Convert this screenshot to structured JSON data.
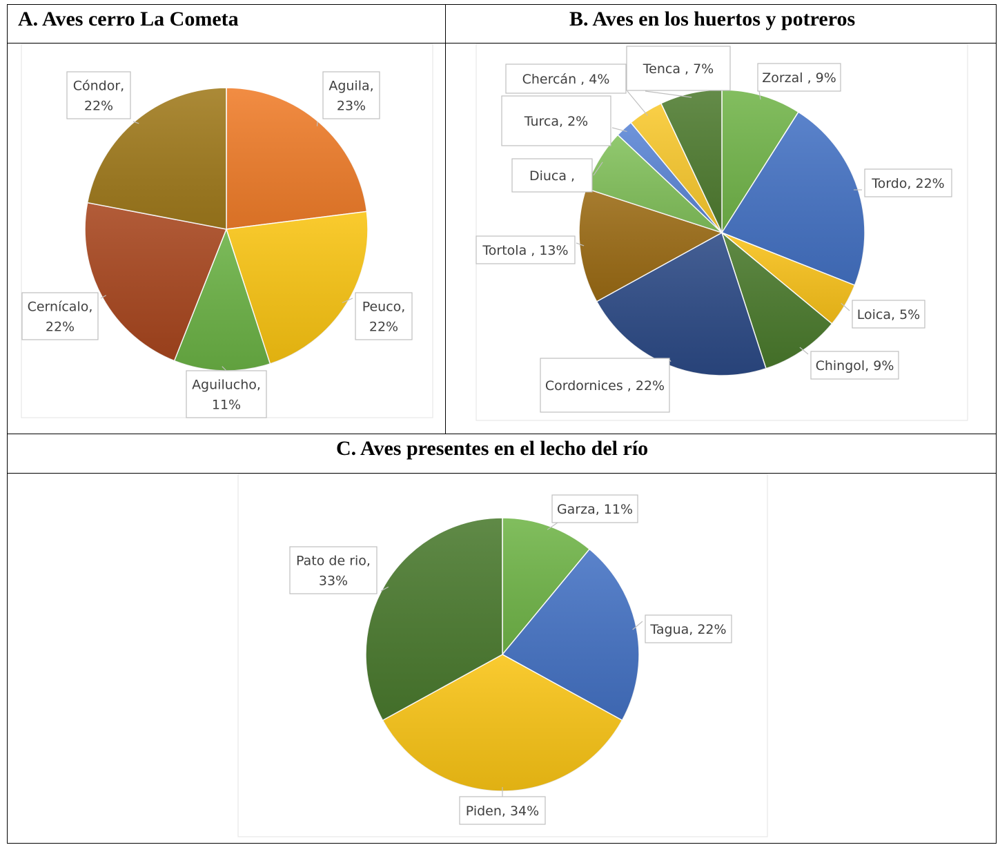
{
  "chart_data": [
    {
      "type": "pie",
      "title": "A. Aves cerro La Cometa",
      "slices": [
        {
          "label": "Aguila",
          "value": 23,
          "label_lines": [
            "Aguila,",
            "23%"
          ],
          "color": "#f07d2a"
        },
        {
          "label": "Peuco",
          "value": 22,
          "label_lines": [
            "Peuco,",
            "22%"
          ],
          "color": "#f9c412"
        },
        {
          "label": "Aguilucho",
          "value": 11,
          "label_lines": [
            "Aguilucho,",
            "11%"
          ],
          "color": "#6bb245"
        },
        {
          "label": "Cernícalo",
          "value": 22,
          "label_lines": [
            "Cernícalo,",
            "22%"
          ],
          "color": "#a8461e"
        },
        {
          "label": "Cóndor",
          "value": 22,
          "label_lines": [
            "Cóndor,",
            "22%"
          ],
          "color": "#a07a1c"
        }
      ]
    },
    {
      "type": "pie",
      "title": "B. Aves en los huertos y potreros",
      "slices": [
        {
          "label": "Zorzal",
          "value": 9,
          "label_lines": [
            "Zorzal , 9%"
          ],
          "color": "#72b54a"
        },
        {
          "label": "Tordo",
          "value": 22,
          "label_lines": [
            "Tordo, 22%"
          ],
          "color": "#4472c4"
        },
        {
          "label": "Loica",
          "value": 5,
          "label_lines": [
            "Loica, 5%"
          ],
          "color": "#f9c21a"
        },
        {
          "label": "Chingol",
          "value": 9,
          "label_lines": [
            "Chingol, 9%"
          ],
          "color": "#4a7a2c"
        },
        {
          "label": "Cordornices",
          "value": 22,
          "label_lines": [
            "Cordornices , 22%"
          ],
          "color": "#2c4a86"
        },
        {
          "label": "Tortola",
          "value": 13,
          "label_lines": [
            "Tortola , 13%"
          ],
          "color": "#9b6b14"
        },
        {
          "label": "Diuca",
          "value": 7,
          "label_lines": [
            "Diuca ,"
          ],
          "color": "#83c25c"
        },
        {
          "label": "Turca",
          "value": 2,
          "label_lines": [
            "Turca, 2%"
          ],
          "color": "#5b86d6"
        },
        {
          "label": "Chercán",
          "value": 4,
          "label_lines": [
            "Chercán , 4%"
          ],
          "color": "#f9c92e"
        },
        {
          "label": "Tenca",
          "value": 7,
          "label_lines": [
            "Tenca , 7%"
          ],
          "color": "#4f7c30"
        }
      ]
    },
    {
      "type": "pie",
      "title": "C. Aves presentes en el lecho del río",
      "slices": [
        {
          "label": "Garza",
          "value": 11,
          "label_lines": [
            "Garza, 11%"
          ],
          "color": "#70b548"
        },
        {
          "label": "Tagua",
          "value": 22,
          "label_lines": [
            "Tagua, 22%"
          ],
          "color": "#4472c4"
        },
        {
          "label": "Piden",
          "value": 34,
          "label_lines": [
            "Piden, 34%"
          ],
          "color": "#f9c415"
        },
        {
          "label": "Pato de rio",
          "value": 33,
          "label_lines": [
            "Pato de rio,",
            "33%"
          ],
          "color": "#4a7a2e"
        }
      ]
    }
  ]
}
